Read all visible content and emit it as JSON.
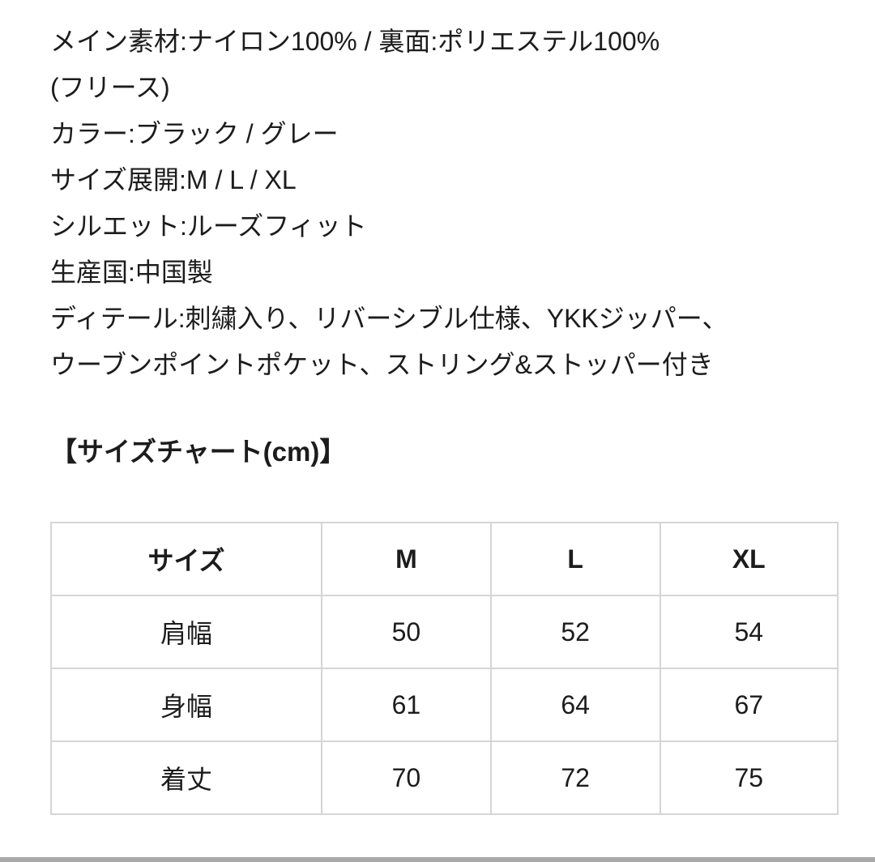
{
  "description": {
    "lines": [
      "メイン素材:ナイロン100% / 裏面:ポリエステル100%",
      "(フリース)",
      "カラー:ブラック / グレー",
      "サイズ展開:M / L / XL",
      "シルエット:ルーズフィット",
      "生産国:中国製",
      "ディテール:刺繍入り、リバーシブル仕様、YKKジッパー、",
      "ウーブンポイントポケット、ストリング&ストッパー付き"
    ]
  },
  "size_chart": {
    "heading": "【サイズチャート(cm)】",
    "columns": [
      "サイズ",
      "M",
      "L",
      "XL"
    ],
    "rows": [
      {
        "label": "肩幅",
        "values": [
          "50",
          "52",
          "54"
        ]
      },
      {
        "label": "身幅",
        "values": [
          "61",
          "64",
          "67"
        ]
      },
      {
        "label": "着丈",
        "values": [
          "70",
          "72",
          "75"
        ]
      }
    ]
  },
  "colors": {
    "text": "#1c1c1c",
    "table_border": "#d5d5d5",
    "bottom_bar": "#a9a9a9",
    "background": "#ffffff"
  }
}
